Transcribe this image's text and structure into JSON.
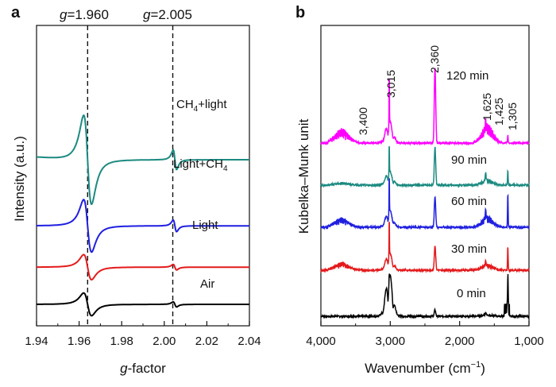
{
  "chart_data": [
    {
      "panel": "a",
      "type": "line",
      "title": "",
      "xlabel": "g-factor",
      "xlabel_italic_part": "g",
      "xlabel_rest": "-factor",
      "ylabel": "Intensity (a.u.)",
      "xlim": [
        1.94,
        2.04
      ],
      "xticks": [
        "1.94",
        "1.96",
        "1.98",
        "2.00",
        "2.02",
        "2.04"
      ],
      "xtick_values": [
        1.94,
        1.96,
        1.98,
        2.0,
        2.02,
        2.04
      ],
      "reference_lines": [
        {
          "g": 1.96,
          "label_italic": "g",
          "label_rest": "=1.960"
        },
        {
          "g": 2.005,
          "label_italic": "g",
          "label_rest": "=2.005"
        }
      ],
      "series": [
        {
          "name": "Air",
          "color": "#000000",
          "baseline": 0.0,
          "amp": 0.5
        },
        {
          "name": "Light",
          "color": "#e41a1c",
          "baseline": 0.9,
          "amp": 0.55
        },
        {
          "name": "Light+CH4",
          "color": "#1f1fe0",
          "baseline": 1.9,
          "amp": 1.15
        },
        {
          "name": "CH4+light",
          "color": "#1b8a80",
          "baseline": 3.5,
          "amp": 1.95
        }
      ],
      "labels": [
        {
          "id": "ch4-light",
          "parts": [
            "CH",
            "4",
            "+light"
          ]
        },
        {
          "id": "light-ch4",
          "parts": [
            "Light+CH",
            "4",
            ""
          ]
        },
        {
          "id": "light",
          "parts": [
            "Light",
            "",
            ""
          ]
        },
        {
          "id": "air",
          "parts": [
            "Air",
            "",
            ""
          ]
        }
      ]
    },
    {
      "panel": "b",
      "type": "line",
      "title": "",
      "xlabel": "Wavenumber (cm−1)",
      "xlabel_main": "Wavenumber (cm",
      "xlabel_sup": "−1",
      "xlabel_close": ")",
      "ylabel": "Kubelka–Munk unit",
      "xlim": [
        4000,
        1000
      ],
      "xticks": [
        "4,000",
        "3,000",
        "2,000",
        "1,000"
      ],
      "xtick_values": [
        4000,
        3000,
        2000,
        1000
      ],
      "peaks": [
        {
          "label": "3,400",
          "wavenumber": 3400
        },
        {
          "label": "3,015",
          "wavenumber": 3015
        },
        {
          "label": "2,360",
          "wavenumber": 2360
        },
        {
          "label": "1,625",
          "wavenumber": 1625
        },
        {
          "label": "1,425",
          "wavenumber": 1425
        },
        {
          "label": "1,305",
          "wavenumber": 1305
        }
      ],
      "series": [
        {
          "name": "0 min",
          "color": "#000000",
          "baseline": 0,
          "scale": 1.0
        },
        {
          "name": "30 min",
          "color": "#e41a1c",
          "baseline": 1,
          "scale": 1.0
        },
        {
          "name": "60 min",
          "color": "#1f1fe0",
          "baseline": 2,
          "scale": 1.0
        },
        {
          "name": "90 min",
          "color": "#1b8a80",
          "baseline": 3,
          "scale": 0.8
        },
        {
          "name": "120 min",
          "color": "#ff00ff",
          "baseline": 4,
          "scale": 1.3
        }
      ]
    }
  ],
  "panels": {
    "a": "a",
    "b": "b"
  }
}
